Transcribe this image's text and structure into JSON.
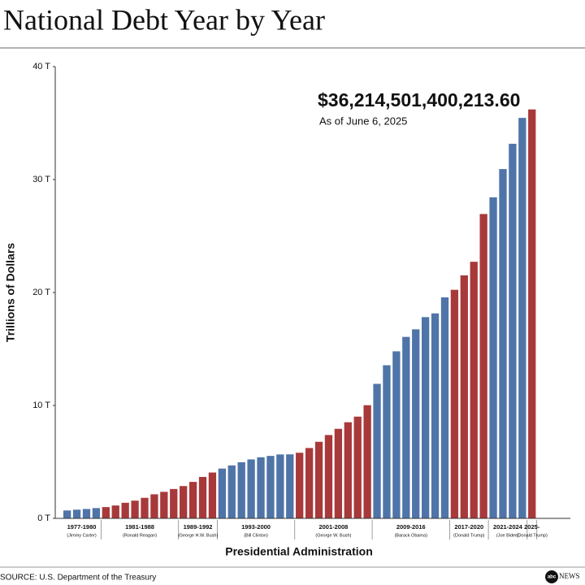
{
  "chart_data": {
    "type": "bar",
    "title": "National Debt Year by Year",
    "y_label": "Trillions of Dollars",
    "x_label": "Presidential Administration",
    "annotation": "$36,214,501,400,213.60",
    "annotation_sub": "As of June 6, 2025",
    "source": "SOURCE: U.S. Department of the Treasury",
    "logo": "abc",
    "logo_text": "NEWS",
    "ylim": [
      0,
      40
    ],
    "yticks": [
      {
        "value": 0,
        "label": "0 T"
      },
      {
        "value": 10,
        "label": "10 T"
      },
      {
        "value": 20,
        "label": "20 T"
      },
      {
        "value": 30,
        "label": "30 T"
      },
      {
        "value": 40,
        "label": "40 T"
      }
    ],
    "groups": [
      {
        "label": "1977-1980",
        "president": "(Jimmy Carter)",
        "color": "#4f74a8",
        "values": [
          0.7,
          0.77,
          0.83,
          0.91
        ]
      },
      {
        "label": "1981-1988",
        "president": "(Ronald Reagan)",
        "color": "#a8393a",
        "values": [
          1.0,
          1.14,
          1.38,
          1.57,
          1.82,
          2.13,
          2.35,
          2.6
        ]
      },
      {
        "label": "1989-1992",
        "president": "(George H.W. Bush)",
        "color": "#a8393a",
        "values": [
          2.86,
          3.23,
          3.67,
          4.06
        ]
      },
      {
        "label": "1993-2000",
        "president": "(Bill Clinton)",
        "color": "#4f74a8",
        "values": [
          4.41,
          4.69,
          4.97,
          5.22,
          5.41,
          5.53,
          5.66,
          5.67
        ]
      },
      {
        "label": "2001-2008",
        "president": "(George W. Bush)",
        "color": "#a8393a",
        "values": [
          5.81,
          6.23,
          6.78,
          7.38,
          7.93,
          8.51,
          9.01,
          10.02
        ]
      },
      {
        "label": "2009-2016",
        "president": "(Barack Obama)",
        "color": "#4f74a8",
        "values": [
          11.91,
          13.56,
          14.79,
          16.07,
          16.74,
          17.82,
          18.15,
          19.57
        ]
      },
      {
        "label": "2017-2020",
        "president": "(Donald Trump)",
        "color": "#a8393a",
        "values": [
          20.24,
          21.52,
          22.72,
          26.95
        ]
      },
      {
        "label": "2021-2024",
        "president": "(Joe Biden)",
        "color": "#4f74a8",
        "values": [
          28.43,
          30.93,
          33.17,
          35.46
        ]
      },
      {
        "label": "2025-",
        "president": "(Donald Trump)",
        "color": "#a8393a",
        "values": [
          36.21
        ]
      }
    ]
  }
}
